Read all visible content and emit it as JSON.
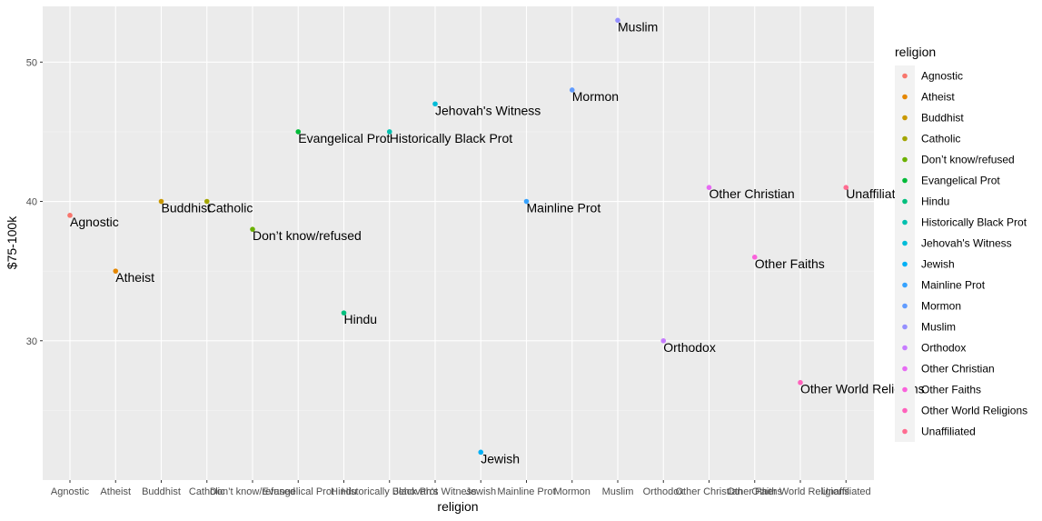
{
  "chart_data": {
    "type": "scatter",
    "xlabel": "religion",
    "ylabel": "$75-100k",
    "ylim": [
      20,
      54
    ],
    "yticks": [
      30,
      40,
      50
    ],
    "grid": true,
    "legend": {
      "title": "religion",
      "position": "right"
    },
    "categories": [
      "Agnostic",
      "Atheist",
      "Buddhist",
      "Catholic",
      "Don’t know/refused",
      "Evangelical Prot",
      "Hindu",
      "Historically Black Prot",
      "Jehovah's Witness",
      "Jewish",
      "Mainline Prot",
      "Mormon",
      "Muslim",
      "Orthodox",
      "Other Christian",
      "Other Faiths",
      "Other World Religions",
      "Unaffiliated"
    ],
    "values": [
      39,
      35,
      40,
      40,
      38,
      45,
      32,
      45,
      47,
      22,
      40,
      48,
      53,
      30,
      41,
      36,
      27,
      41
    ],
    "colors": [
      "#F8766D",
      "#E58700",
      "#C99800",
      "#A3A500",
      "#6BB100",
      "#00BA38",
      "#00BF7D",
      "#00C0AF",
      "#00BCD8",
      "#00B0F6",
      "#35A2FF",
      "#619CFF",
      "#9590FF",
      "#C77CFF",
      "#E76BF3",
      "#FA62DB",
      "#FF62BC",
      "#FF6C91"
    ]
  }
}
